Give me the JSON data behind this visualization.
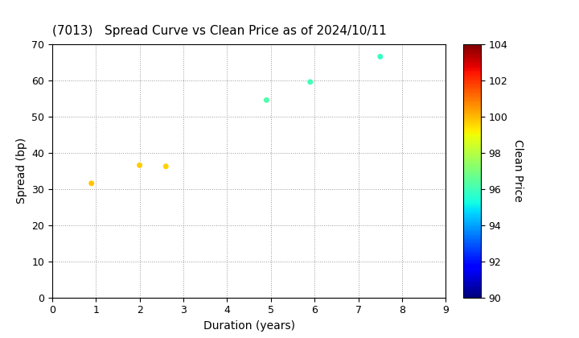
{
  "title": "(7013)   Spread Curve vs Clean Price as of 2024/10/11",
  "xlabel": "Duration (years)",
  "ylabel": "Spread (bp)",
  "colorbar_label": "Clean Price",
  "xlim": [
    0,
    9
  ],
  "ylim": [
    0,
    70
  ],
  "xticks": [
    0,
    1,
    2,
    3,
    4,
    5,
    6,
    7,
    8,
    9
  ],
  "yticks": [
    0,
    10,
    20,
    30,
    40,
    50,
    60,
    70
  ],
  "colorbar_min": 90,
  "colorbar_max": 104,
  "colorbar_ticks": [
    90,
    92,
    94,
    96,
    98,
    100,
    102,
    104
  ],
  "points": [
    {
      "duration": 0.9,
      "spread": 31.5,
      "price": 99.8
    },
    {
      "duration": 2.0,
      "spread": 36.5,
      "price": 99.7
    },
    {
      "duration": 2.6,
      "spread": 36.2,
      "price": 99.6
    },
    {
      "duration": 4.9,
      "spread": 54.5,
      "price": 96.2
    },
    {
      "duration": 5.9,
      "spread": 59.5,
      "price": 96.0
    },
    {
      "duration": 7.5,
      "spread": 66.5,
      "price": 95.8
    }
  ],
  "marker_size": 25,
  "colormap": "jet",
  "title_fontsize": 11,
  "axis_label_fontsize": 10,
  "tick_fontsize": 9,
  "background_color": "#ffffff",
  "grid_color": "#999999",
  "grid_linestyle": ":"
}
